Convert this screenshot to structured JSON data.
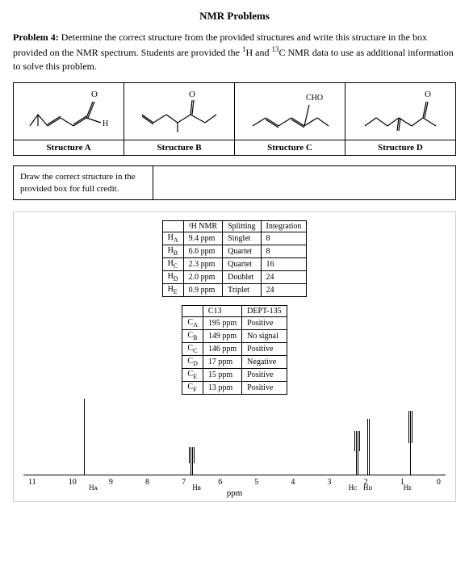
{
  "title": "NMR Problems",
  "problem_label": "Problem 4:",
  "problem_text_1": " Determine the correct structure from the provided structures and write this structure in the box provided on the NMR spectrum. Students are provided the ",
  "problem_text_h": "1",
  "problem_text_2": "H and ",
  "problem_text_c": "13",
  "problem_text_3": "C NMR data to use as additional information to solve this problem.",
  "structures": {
    "a": "Structure A",
    "b": "Structure B",
    "c": "Structure C",
    "d": "Structure D",
    "cho_label": "CHO",
    "h_label": "H",
    "o_label": "O"
  },
  "answer_box": "Draw the correct structure in the provided box for full credit.",
  "h_table": {
    "headers": [
      "",
      "¹H NMR",
      "Splitting",
      "Integration"
    ],
    "rows": [
      [
        "H",
        "A",
        "9.4 ppm",
        "Singlet",
        "8"
      ],
      [
        "H",
        "B",
        "6.6 ppm",
        "Quartet",
        "8"
      ],
      [
        "H",
        "C",
        "2.3 ppm",
        "Quartet",
        "16"
      ],
      [
        "H",
        "D",
        "2.0 ppm",
        "Doublet",
        "24"
      ],
      [
        "H",
        "E",
        "0.9 ppm",
        "Triplet",
        "24"
      ]
    ]
  },
  "c_table": {
    "headers": [
      "",
      "C13",
      "DEPT-135"
    ],
    "rows": [
      [
        "C",
        "A",
        "195 ppm",
        "Positive"
      ],
      [
        "C",
        "B",
        "149 ppm",
        "No signal"
      ],
      [
        "C",
        "C",
        "146 ppm",
        "Positive"
      ],
      [
        "C",
        "D",
        "17 ppm",
        "Negative"
      ],
      [
        "C",
        "E",
        "15 ppm",
        "Positive"
      ],
      [
        "C",
        "F",
        "13 ppm",
        "Positive"
      ]
    ]
  },
  "spectrum": {
    "axis_label": "ppm",
    "ticks": [
      "11",
      "10",
      "9",
      "8",
      "7",
      "6",
      "5",
      "4",
      "3",
      "2",
      "1",
      "0"
    ],
    "peak_labels": {
      "ha": "Hᴀ",
      "hb": "Hʙ",
      "hc": "Hᴄ",
      "hd": " Hᴅ",
      "he": "Hᴇ"
    },
    "peaks": [
      {
        "ppm": 9.4,
        "heights": [
          95
        ]
      },
      {
        "ppm": 6.6,
        "heights": [
          20,
          35,
          35,
          20
        ]
      },
      {
        "ppm": 2.3,
        "heights": [
          25,
          55,
          55,
          25
        ]
      },
      {
        "ppm": 2.0,
        "heights": [
          70,
          70
        ]
      },
      {
        "ppm": 0.9,
        "heights": [
          40,
          80,
          40
        ]
      }
    ]
  }
}
